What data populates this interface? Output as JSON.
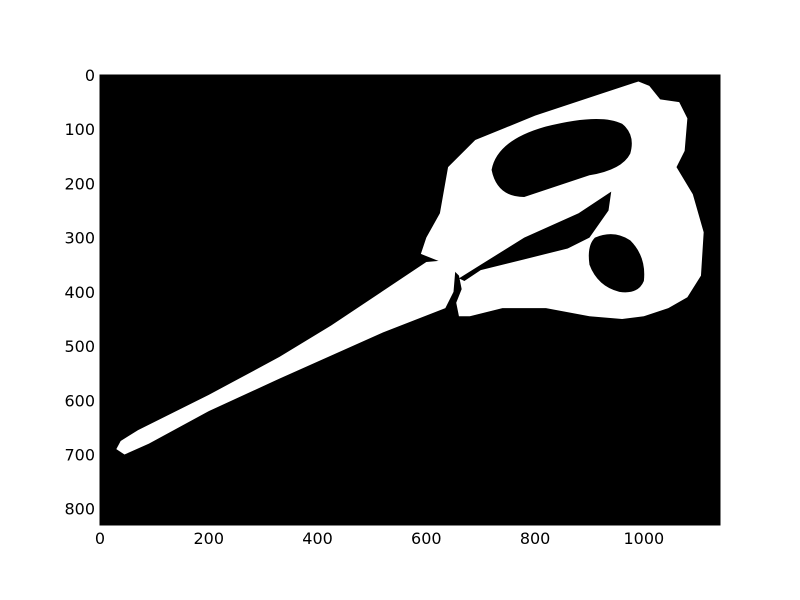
{
  "chart_data": {
    "type": "image",
    "title": "",
    "xlabel": "",
    "ylabel": "",
    "image_width": 1140,
    "image_height": 830,
    "xlim": [
      0,
      1140
    ],
    "ylim": [
      830,
      0
    ],
    "y_inverted": true,
    "grid": false,
    "legend": "none",
    "x_ticks": [
      0,
      200,
      400,
      600,
      800,
      1000
    ],
    "x_tick_labels": [
      "0",
      "200",
      "400",
      "600",
      "800",
      "1000"
    ],
    "y_ticks": [
      0,
      100,
      200,
      300,
      400,
      500,
      600,
      700,
      800
    ],
    "y_tick_labels": [
      "0",
      "100",
      "200",
      "300",
      "400",
      "500",
      "600",
      "700",
      "800"
    ],
    "colors": {
      "background": "#000000",
      "foreground": "#ffffff"
    },
    "content": "binary mask of scissors"
  }
}
